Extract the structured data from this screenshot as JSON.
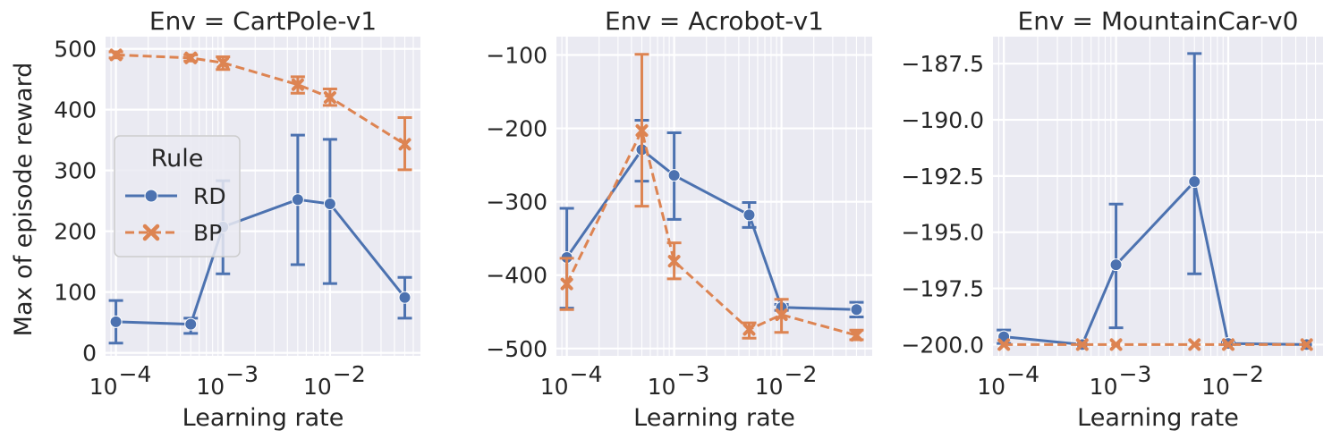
{
  "figure": {
    "ylabel": "Max of episode reward"
  },
  "legend": {
    "title": "Rule",
    "entries": [
      {
        "label": "RD",
        "color": "#4c72b0",
        "marker": "circle",
        "dash": "solid"
      },
      {
        "label": "BP",
        "color": "#dd8452",
        "marker": "x",
        "dash": "dashed"
      }
    ],
    "placement": "center-left of first panel"
  },
  "chart_data": [
    {
      "type": "line",
      "title": "Env = CartPole-v1",
      "xlabel": "Learning rate",
      "xscale": "log",
      "xlim": [
        8e-05,
        0.07
      ],
      "ylim": [
        -5,
        520
      ],
      "yticks": [
        0,
        100,
        200,
        300,
        400,
        500
      ],
      "ytick_labels": [
        "0",
        "100",
        "200",
        "300",
        "400",
        "500"
      ],
      "xticks": [
        0.0001,
        0.001,
        0.01
      ],
      "xtick_labels": [
        "10",
        "10",
        "10"
      ],
      "xtick_exponents": [
        "−4",
        "−3",
        "−2"
      ],
      "grid": true,
      "x": [
        0.0001,
        0.0005,
        0.001,
        0.005,
        0.01,
        0.05
      ],
      "series": [
        {
          "name": "RD",
          "values": [
            51,
            47,
            207,
            252,
            245,
            91
          ],
          "err_low": [
            16,
            32,
            130,
            145,
            114,
            57
          ],
          "err_high": [
            86,
            57,
            283,
            358,
            351,
            124
          ]
        },
        {
          "name": "BP",
          "values": [
            490,
            485,
            477,
            441,
            420,
            343
          ],
          "err_low": [
            485,
            480,
            466,
            427,
            407,
            301
          ],
          "err_high": [
            495,
            490,
            487,
            454,
            434,
            387
          ]
        }
      ]
    },
    {
      "type": "line",
      "title": "Env = Acrobot-v1",
      "xlabel": "Learning rate",
      "xscale": "log",
      "xlim": [
        8e-05,
        0.07
      ],
      "ylim": [
        -510,
        -75
      ],
      "yticks": [
        -500,
        -400,
        -300,
        -200,
        -100
      ],
      "ytick_labels": [
        "−500",
        "−400",
        "−300",
        "−200",
        "−100"
      ],
      "xticks": [
        0.0001,
        0.001,
        0.01
      ],
      "xtick_labels": [
        "10",
        "10",
        "10"
      ],
      "xtick_exponents": [
        "−4",
        "−3",
        "−2"
      ],
      "grid": true,
      "x": [
        0.0001,
        0.0005,
        0.001,
        0.005,
        0.01,
        0.05
      ],
      "series": [
        {
          "name": "RD",
          "values": [
            -376,
            -229,
            -264,
            -318,
            -444,
            -447
          ],
          "err_low": [
            -445,
            -272,
            -324,
            -335,
            -448,
            -457
          ],
          "err_high": [
            -309,
            -189,
            -206,
            -301,
            -440,
            -437
          ]
        },
        {
          "name": "BP",
          "values": [
            -412,
            -203,
            -381,
            -474,
            -454,
            -482
          ],
          "err_low": [
            -447,
            -306,
            -405,
            -486,
            -478,
            -488
          ],
          "err_high": [
            -377,
            -99,
            -356,
            -465,
            -433,
            -475
          ]
        }
      ]
    },
    {
      "type": "line",
      "title": "Env = MountainCar-v0",
      "xlabel": "Learning rate",
      "xscale": "log",
      "xlim": [
        8e-05,
        0.07
      ],
      "ylim": [
        -200.5,
        -186.3
      ],
      "yticks": [
        -200.0,
        -197.5,
        -195.0,
        -192.5,
        -190.0,
        -187.5
      ],
      "ytick_labels": [
        "−200.0",
        "−197.5",
        "−195.0",
        "−192.5",
        "−190.0",
        "−187.5"
      ],
      "xticks": [
        0.0001,
        0.001,
        0.01
      ],
      "xtick_labels": [
        "10",
        "10",
        "10"
      ],
      "xtick_exponents": [
        "−4",
        "−3",
        "−2"
      ],
      "grid": true,
      "x": [
        0.0001,
        0.0005,
        0.001,
        0.005,
        0.01,
        0.05
      ],
      "series": [
        {
          "name": "RD",
          "values": [
            -199.65,
            -200.0,
            -196.45,
            -192.75,
            -199.95,
            -200.0
          ],
          "err_low": [
            -199.95,
            -200.0,
            -199.25,
            -196.85,
            -200.0,
            -200.0
          ],
          "err_high": [
            -199.35,
            -200.0,
            -193.75,
            -187.05,
            -199.9,
            -200.0
          ]
        },
        {
          "name": "BP",
          "values": [
            -200.0,
            -200.0,
            -200.0,
            -200.0,
            -200.0,
            -200.0
          ],
          "err_low": [
            -200.0,
            -200.0,
            -200.0,
            -200.0,
            -200.0,
            -200.0
          ],
          "err_high": [
            -200.0,
            -200.0,
            -200.0,
            -200.0,
            -200.0,
            -200.0
          ]
        }
      ]
    }
  ]
}
